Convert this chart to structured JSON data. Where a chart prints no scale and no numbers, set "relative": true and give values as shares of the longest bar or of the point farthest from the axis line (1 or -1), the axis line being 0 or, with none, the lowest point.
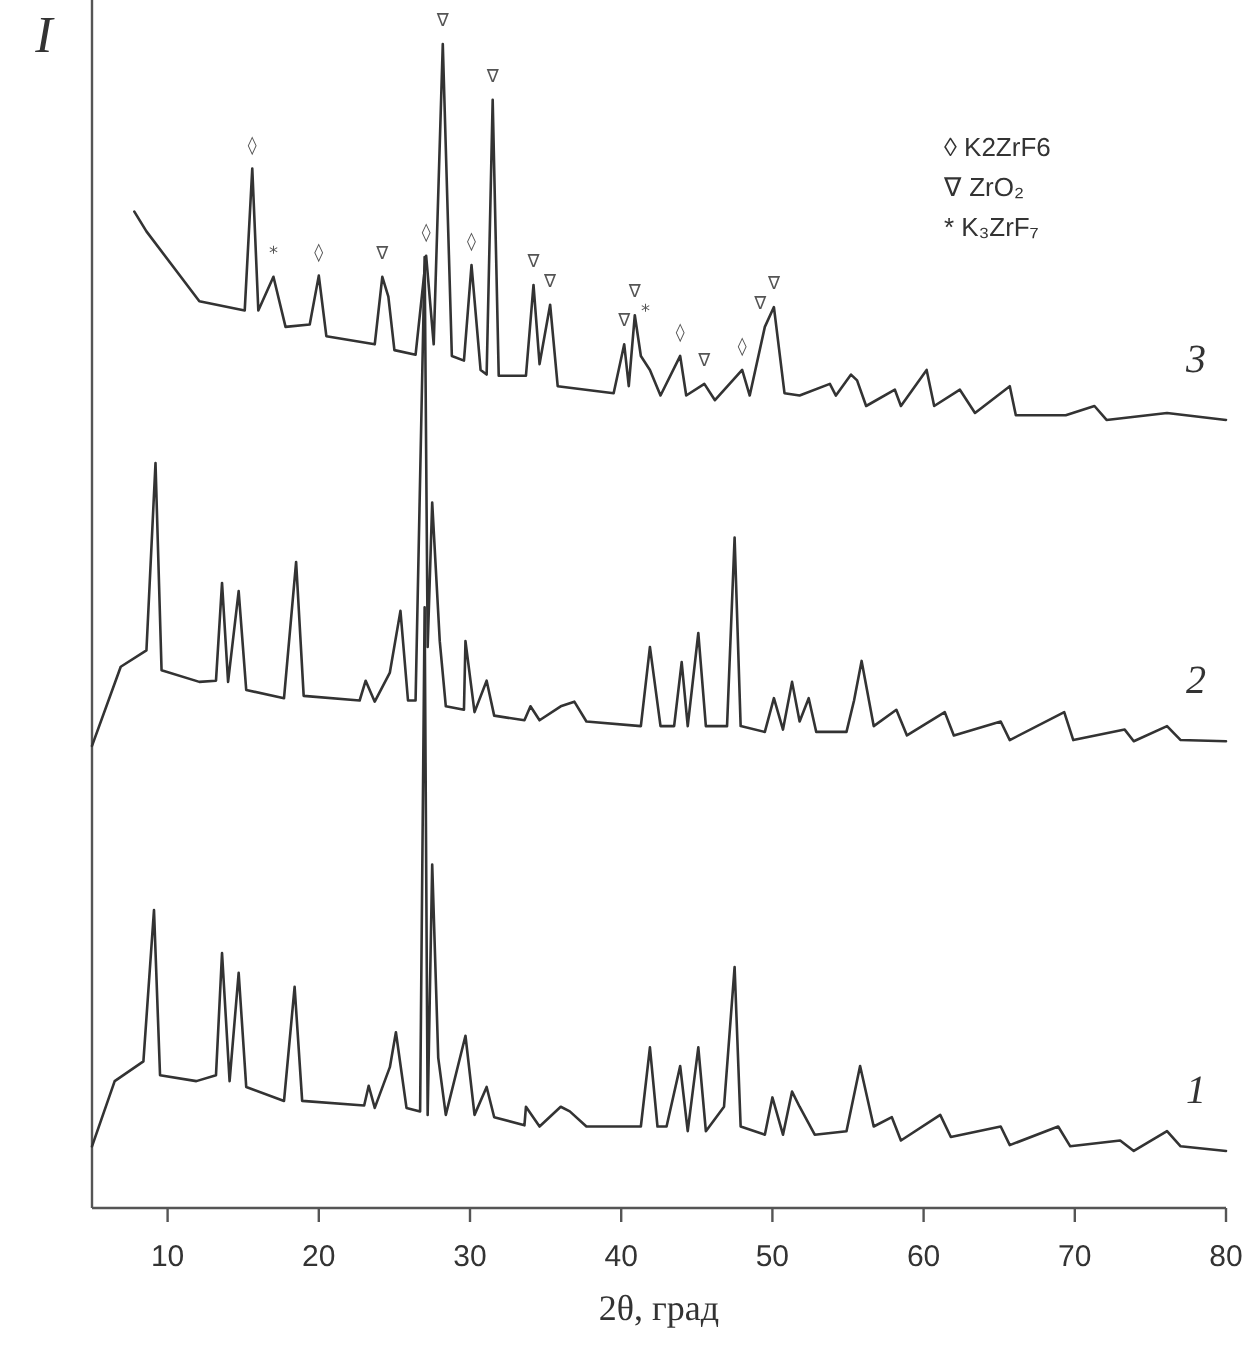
{
  "chart_data": {
    "type": "line",
    "relative": true,
    "xlabel": "2θ, град",
    "ylabel": "I",
    "xlim": [
      5,
      80
    ],
    "xticks": [
      10,
      20,
      30,
      40,
      50,
      60,
      70,
      80
    ],
    "series": [
      {
        "name": "1",
        "color": "#333333",
        "x": [
          5.0,
          6.5,
          8.4,
          9.1,
          9.5,
          11.9,
          13.2,
          13.6,
          14.1,
          14.7,
          15.2,
          17.7,
          18.4,
          18.9,
          23.0,
          23.3,
          23.7,
          24.7,
          25.1,
          25.8,
          26.7,
          27.0,
          27.2,
          27.5,
          27.9,
          28.4,
          29.7,
          30.3,
          31.1,
          31.6,
          33.6,
          33.7,
          34.6,
          36.0,
          36.6,
          37.7,
          41.3,
          41.9,
          42.4,
          43.0,
          43.9,
          44.4,
          45.1,
          45.6,
          46.8,
          47.5,
          47.9,
          49.5,
          50.0,
          50.7,
          51.3,
          51.8,
          52.8,
          54.9,
          55.8,
          56.7,
          57.9,
          58.5,
          61.1,
          61.8,
          65.1,
          65.7,
          68.9,
          69.7,
          73.0,
          73.9,
          76.1,
          77.0,
          80
        ],
        "values": [
          0.053,
          0.109,
          0.126,
          0.256,
          0.114,
          0.109,
          0.114,
          0.219,
          0.109,
          0.202,
          0.104,
          0.092,
          0.19,
          0.092,
          0.088,
          0.105,
          0.086,
          0.121,
          0.151,
          0.086,
          0.083,
          0.516,
          0.08,
          0.295,
          0.129,
          0.08,
          0.148,
          0.08,
          0.104,
          0.078,
          0.071,
          0.087,
          0.07,
          0.087,
          0.083,
          0.07,
          0.07,
          0.138,
          0.07,
          0.07,
          0.122,
          0.066,
          0.138,
          0.066,
          0.087,
          0.207,
          0.07,
          0.063,
          0.095,
          0.063,
          0.1,
          0.087,
          0.063,
          0.066,
          0.122,
          0.07,
          0.078,
          0.058,
          0.08,
          0.061,
          0.07,
          0.054,
          0.07,
          0.053,
          0.058,
          0.049,
          0.066,
          0.053,
          0.049
        ]
      },
      {
        "name": "2",
        "color": "#333333",
        "x": [
          5.0,
          6.9,
          8.6,
          9.2,
          9.6,
          12.1,
          13.2,
          13.6,
          14.0,
          14.7,
          15.2,
          17.7,
          18.5,
          19.0,
          22.7,
          23.1,
          23.7,
          24.7,
          25.4,
          25.9,
          26.4,
          27.0,
          27.2,
          27.5,
          28.0,
          28.4,
          29.6,
          29.7,
          30.3,
          31.1,
          31.6,
          33.6,
          34.0,
          34.6,
          36.0,
          36.9,
          37.7,
          41.3,
          41.9,
          42.6,
          43.5,
          44.0,
          44.4,
          45.1,
          45.6,
          47.0,
          47.5,
          47.9,
          49.5,
          50.1,
          50.7,
          51.3,
          51.8,
          52.4,
          52.9,
          54.9,
          55.4,
          55.9,
          56.7,
          58.2,
          58.9,
          61.4,
          62.0,
          65.1,
          65.7,
          69.3,
          69.9,
          73.3,
          73.9,
          76.1,
          77.0,
          80
        ],
        "values": [
          0.397,
          0.465,
          0.479,
          0.64,
          0.462,
          0.452,
          0.453,
          0.537,
          0.452,
          0.53,
          0.445,
          0.438,
          0.555,
          0.44,
          0.436,
          0.453,
          0.435,
          0.46,
          0.513,
          0.436,
          0.436,
          0.817,
          0.482,
          0.606,
          0.487,
          0.431,
          0.428,
          0.487,
          0.426,
          0.453,
          0.423,
          0.419,
          0.431,
          0.419,
          0.431,
          0.435,
          0.418,
          0.414,
          0.482,
          0.414,
          0.414,
          0.469,
          0.414,
          0.494,
          0.414,
          0.414,
          0.576,
          0.414,
          0.409,
          0.438,
          0.411,
          0.452,
          0.418,
          0.438,
          0.409,
          0.409,
          0.436,
          0.47,
          0.414,
          0.428,
          0.406,
          0.426,
          0.406,
          0.418,
          0.402,
          0.426,
          0.402,
          0.411,
          0.401,
          0.414,
          0.402,
          0.401
        ]
      },
      {
        "name": "3",
        "color": "#333333",
        "x": [
          7.8,
          8.6,
          12.1,
          15.1,
          15.6,
          16.0,
          17.0,
          17.8,
          19.4,
          20.0,
          20.5,
          23.7,
          24.2,
          24.6,
          25.0,
          26.4,
          27.1,
          27.6,
          28.2,
          28.8,
          29.6,
          30.1,
          30.7,
          31.1,
          31.5,
          31.9,
          33.7,
          34.2,
          34.6,
          35.3,
          35.8,
          39.5,
          40.2,
          40.5,
          40.9,
          41.3,
          41.9,
          42.6,
          43.9,
          44.3,
          45.5,
          46.2,
          48.0,
          48.5,
          49.5,
          50.1,
          50.8,
          51.8,
          53.8,
          54.2,
          55.2,
          55.6,
          56.2,
          58.1,
          58.5,
          60.2,
          60.7,
          62.4,
          63.4,
          65.7,
          66.1,
          69.4,
          71.3,
          72.1,
          76.1,
          80
        ],
        "values": [
          0.856,
          0.839,
          0.779,
          0.771,
          0.893,
          0.771,
          0.8,
          0.757,
          0.759,
          0.801,
          0.749,
          0.742,
          0.8,
          0.783,
          0.737,
          0.733,
          0.818,
          0.742,
          1,
          0.732,
          0.728,
          0.81,
          0.72,
          0.716,
          0.952,
          0.715,
          0.715,
          0.793,
          0.725,
          0.776,
          0.706,
          0.7,
          0.742,
          0.706,
          0.767,
          0.732,
          0.72,
          0.698,
          0.732,
          0.698,
          0.708,
          0.694,
          0.72,
          0.698,
          0.757,
          0.774,
          0.7,
          0.698,
          0.708,
          0.698,
          0.716,
          0.711,
          0.689,
          0.703,
          0.689,
          0.72,
          0.689,
          0.703,
          0.683,
          0.706,
          0.681,
          0.681,
          0.689,
          0.677,
          0.683,
          0.677
        ]
      }
    ],
    "annotations": [
      "◊ K2ZrF6",
      "∇ ZrO₂",
      "* K₃ZrF₇",
      {
        "text": "◊",
        "x": 15.6,
        "y": 0.893
      },
      {
        "text": "*",
        "x": 17.0,
        "y": 0.8
      },
      {
        "text": "◊",
        "x": 20.0,
        "y": 0.801
      },
      {
        "text": "∇",
        "x": 24.2,
        "y": 0.8
      },
      {
        "text": "◊",
        "x": 27.1,
        "y": 0.818
      },
      {
        "text": "∇",
        "x": 28.2,
        "y": 1
      },
      {
        "text": "◊",
        "x": 30.1,
        "y": 0.81
      },
      {
        "text": "∇",
        "x": 31.5,
        "y": 0.952
      },
      {
        "text": "∇",
        "x": 34.2,
        "y": 0.793
      },
      {
        "text": "∇",
        "x": 35.3,
        "y": 0.776
      },
      {
        "text": "∇",
        "x": 40.2,
        "y": 0.742
      },
      {
        "text": "∇",
        "x": 40.9,
        "y": 0.767
      },
      {
        "text": "*",
        "x": 41.6,
        "y": 0.75
      },
      {
        "text": "◊",
        "x": 43.9,
        "y": 0.732
      },
      {
        "text": "∇",
        "x": 45.5,
        "y": 0.708
      },
      {
        "text": "◊",
        "x": 48.0,
        "y": 0.72
      },
      {
        "text": "∇",
        "x": 49.2,
        "y": 0.757
      },
      {
        "text": "∇",
        "x": 50.1,
        "y": 0.774
      }
    ]
  }
}
